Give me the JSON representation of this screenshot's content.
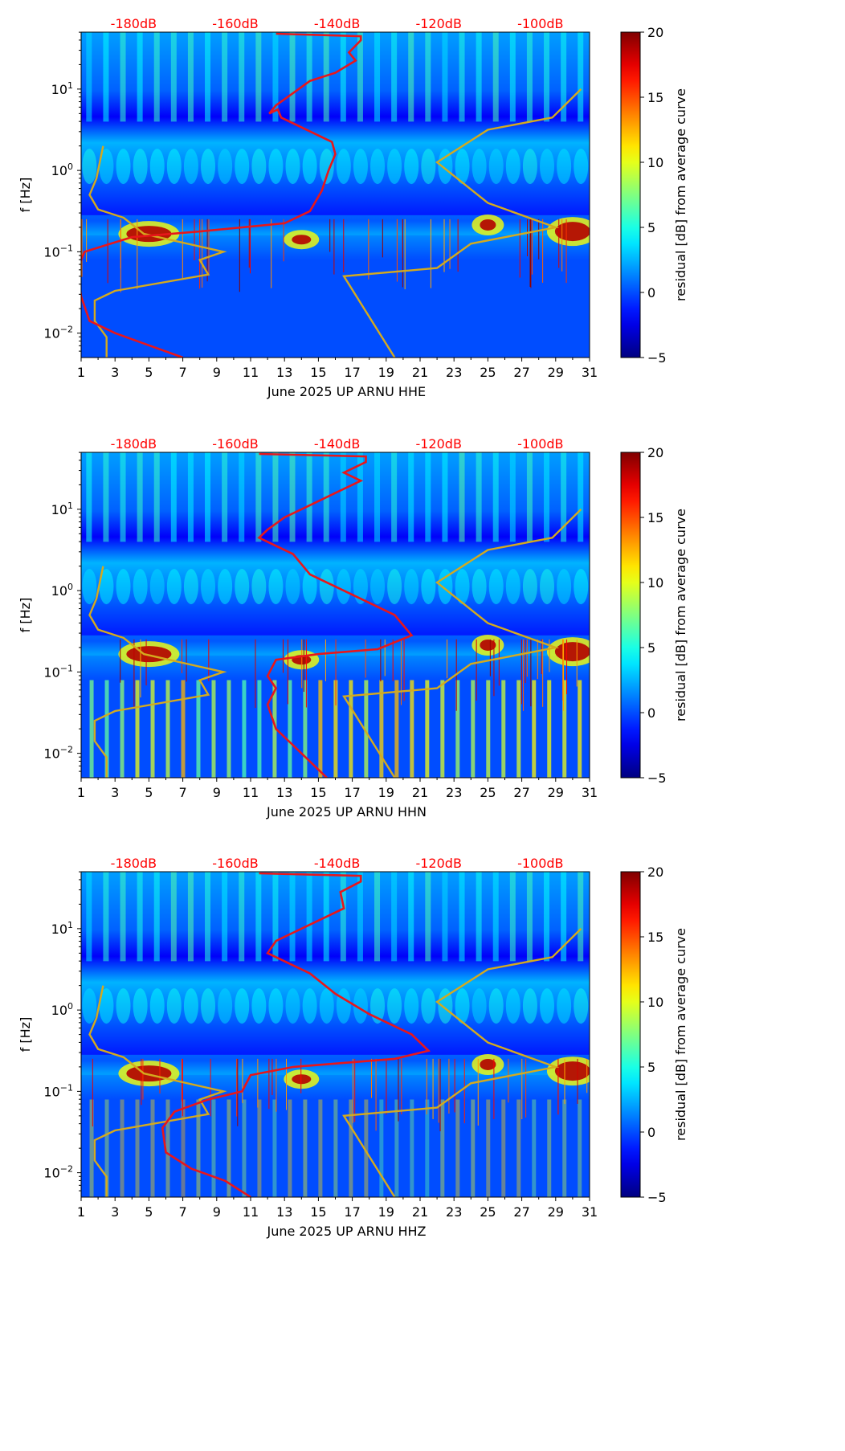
{
  "figure": {
    "colors": {
      "noise_model": "#d4aa1e",
      "psd_curve": "#e8161b",
      "top_labels": "#ff0000"
    }
  },
  "colorbar": {
    "label": "residual [dB] from average curve",
    "min": -5,
    "max": 20,
    "ticks": [
      "20",
      "15",
      "10",
      "5",
      "0",
      "−5"
    ],
    "tick_values": [
      20,
      15,
      10,
      5,
      0,
      -5
    ]
  },
  "chart_data": [
    {
      "type": "heatmap",
      "title": "",
      "xlabel": "June 2025 UP ARNU  HHE",
      "ylabel": "f [Hz]",
      "xlim": [
        1,
        31
      ],
      "ylim_log10": [
        -2.3,
        1.7
      ],
      "x_ticks": [
        "1",
        "3",
        "5",
        "7",
        "9",
        "11",
        "13",
        "15",
        "17",
        "19",
        "21",
        "23",
        "25",
        "27",
        "29",
        "31"
      ],
      "y_ticks": [
        {
          "label": "10",
          "exp": "1",
          "log10": 1
        },
        {
          "label": "10",
          "exp": "0",
          "log10": 0
        },
        {
          "label": "10",
          "exp": "−1",
          "log10": -1
        },
        {
          "label": "10",
          "exp": "−2",
          "log10": -2
        }
      ],
      "top_labels": [
        "-180dB",
        "-160dB",
        "-140dB",
        "-120dB",
        "-100dB"
      ],
      "top_label_days": [
        4.1,
        10.1,
        16.1,
        22.1,
        28.1
      ],
      "series": [
        {
          "name": "low noise model",
          "color": "#d4aa1e",
          "x": [
            2.5,
            2.5,
            1.8,
            1.8,
            3.0,
            8.5,
            8.0,
            9.4,
            4.7,
            3.5,
            2.0,
            1.5,
            1.9,
            2.3
          ],
          "log10f": [
            -2.3,
            -2.05,
            -1.85,
            -1.6,
            -1.48,
            -1.28,
            -1.1,
            -1.0,
            -0.78,
            -0.58,
            -0.48,
            -0.3,
            -0.1,
            0.3
          ]
        },
        {
          "name": "high noise model",
          "color": "#d4aa1e",
          "x": [
            19.5,
            16.5,
            22.0,
            24.0,
            29.0,
            25.0,
            22.0,
            25.0,
            28.8,
            30.5
          ],
          "log10f": [
            -2.3,
            -1.3,
            -1.2,
            -0.9,
            -0.7,
            -0.4,
            0.1,
            0.5,
            0.65,
            1.0
          ]
        },
        {
          "name": "PSD curve",
          "color": "#e8161b",
          "x": [
            7.0,
            5.0,
            3.0,
            1.5,
            1.0,
            0.8,
            1.2,
            4.0,
            8.0,
            13.0,
            14.5,
            15.2,
            15.6,
            16.0,
            15.8,
            14.8,
            13.8,
            12.8,
            12.6,
            12.1,
            12.5,
            13.5,
            14.5,
            16.0,
            17.2,
            16.8,
            17.5,
            17.5,
            12.5
          ],
          "log10f": [
            -2.3,
            -2.15,
            -2.0,
            -1.85,
            -1.55,
            -1.2,
            -1.0,
            -0.82,
            -0.75,
            -0.65,
            -0.5,
            -0.25,
            0.0,
            0.2,
            0.35,
            0.45,
            0.55,
            0.65,
            0.75,
            0.7,
            0.8,
            0.95,
            1.1,
            1.2,
            1.35,
            1.45,
            1.6,
            1.65,
            1.68
          ]
        }
      ]
    },
    {
      "type": "heatmap",
      "title": "",
      "xlabel": "June 2025 UP ARNU  HHN",
      "ylabel": "f [Hz]",
      "xlim": [
        1,
        31
      ],
      "ylim_log10": [
        -2.3,
        1.7
      ],
      "x_ticks": [
        "1",
        "3",
        "5",
        "7",
        "9",
        "11",
        "13",
        "15",
        "17",
        "19",
        "21",
        "23",
        "25",
        "27",
        "29",
        "31"
      ],
      "y_ticks": [
        {
          "label": "10",
          "exp": "1",
          "log10": 1
        },
        {
          "label": "10",
          "exp": "0",
          "log10": 0
        },
        {
          "label": "10",
          "exp": "−1",
          "log10": -1
        },
        {
          "label": "10",
          "exp": "−2",
          "log10": -2
        }
      ],
      "top_labels": [
        "-180dB",
        "-160dB",
        "-140dB",
        "-120dB",
        "-100dB"
      ],
      "top_label_days": [
        4.1,
        10.1,
        16.1,
        22.1,
        28.1
      ],
      "series": [
        {
          "name": "low noise model",
          "color": "#d4aa1e",
          "x": [
            2.5,
            2.5,
            1.8,
            1.8,
            3.0,
            8.5,
            8.0,
            9.4,
            4.7,
            3.5,
            2.0,
            1.5,
            1.9,
            2.3
          ],
          "log10f": [
            -2.3,
            -2.05,
            -1.85,
            -1.6,
            -1.48,
            -1.28,
            -1.1,
            -1.0,
            -0.78,
            -0.58,
            -0.48,
            -0.3,
            -0.1,
            0.3
          ]
        },
        {
          "name": "high noise model",
          "color": "#d4aa1e",
          "x": [
            19.5,
            16.5,
            22.0,
            24.0,
            29.0,
            25.0,
            22.0,
            25.0,
            28.8,
            30.5
          ],
          "log10f": [
            -2.3,
            -1.3,
            -1.2,
            -0.9,
            -0.7,
            -0.4,
            0.1,
            0.5,
            0.65,
            1.0
          ]
        },
        {
          "name": "PSD curve",
          "color": "#e8161b",
          "x": [
            15.5,
            14.5,
            13.5,
            12.5,
            12.0,
            12.5,
            12.0,
            12.5,
            15.0,
            18.5,
            20.5,
            19.5,
            17.0,
            14.5,
            13.5,
            12.5,
            11.5,
            12.0,
            13.0,
            14.5,
            16.0,
            17.5,
            16.5,
            17.8,
            17.8,
            11.5
          ],
          "log10f": [
            -2.3,
            -2.1,
            -1.9,
            -1.7,
            -1.4,
            -1.2,
            -1.05,
            -0.85,
            -0.78,
            -0.72,
            -0.55,
            -0.3,
            -0.05,
            0.2,
            0.45,
            0.55,
            0.65,
            0.75,
            0.9,
            1.05,
            1.2,
            1.35,
            1.45,
            1.58,
            1.65,
            1.68
          ]
        }
      ]
    },
    {
      "type": "heatmap",
      "title": "",
      "xlabel": "June 2025 UP ARNU  HHZ",
      "ylabel": "f [Hz]",
      "xlim": [
        1,
        31
      ],
      "ylim_log10": [
        -2.3,
        1.7
      ],
      "x_ticks": [
        "1",
        "3",
        "5",
        "7",
        "9",
        "11",
        "13",
        "15",
        "17",
        "19",
        "21",
        "23",
        "25",
        "27",
        "29",
        "31"
      ],
      "y_ticks": [
        {
          "label": "10",
          "exp": "1",
          "log10": 1
        },
        {
          "label": "10",
          "exp": "0",
          "log10": 0
        },
        {
          "label": "10",
          "exp": "−1",
          "log10": -1
        },
        {
          "label": "10",
          "exp": "−2",
          "log10": -2
        }
      ],
      "top_labels": [
        "-180dB",
        "-160dB",
        "-140dB",
        "-120dB",
        "-100dB"
      ],
      "top_label_days": [
        4.1,
        10.1,
        16.1,
        22.1,
        28.1
      ],
      "series": [
        {
          "name": "low noise model",
          "color": "#d4aa1e",
          "x": [
            2.5,
            2.5,
            1.8,
            1.8,
            3.0,
            8.5,
            8.0,
            9.4,
            4.7,
            3.5,
            2.0,
            1.5,
            1.9,
            2.3
          ],
          "log10f": [
            -2.3,
            -2.05,
            -1.85,
            -1.6,
            -1.48,
            -1.28,
            -1.1,
            -1.0,
            -0.78,
            -0.58,
            -0.48,
            -0.3,
            -0.1,
            0.3
          ]
        },
        {
          "name": "high noise model",
          "color": "#d4aa1e",
          "x": [
            19.5,
            16.5,
            22.0,
            24.0,
            29.0,
            25.0,
            22.0,
            25.0,
            28.8,
            30.5
          ],
          "log10f": [
            -2.3,
            -1.3,
            -1.2,
            -0.9,
            -0.7,
            -0.4,
            0.1,
            0.5,
            0.65,
            1.0
          ]
        },
        {
          "name": "PSD curve",
          "color": "#e8161b",
          "x": [
            11.0,
            9.5,
            7.5,
            6.0,
            5.8,
            6.5,
            8.5,
            10.5,
            11.0,
            13.5,
            16.5,
            19.5,
            21.5,
            20.5,
            18.0,
            16.0,
            14.5,
            13.0,
            12.0,
            12.5,
            14.5,
            16.5,
            16.3,
            17.5,
            17.5,
            11.5
          ],
          "log10f": [
            -2.3,
            -2.1,
            -1.95,
            -1.75,
            -1.45,
            -1.25,
            -1.1,
            -1.0,
            -0.8,
            -0.7,
            -0.65,
            -0.6,
            -0.5,
            -0.3,
            -0.05,
            0.2,
            0.45,
            0.6,
            0.7,
            0.85,
            1.05,
            1.25,
            1.45,
            1.58,
            1.65,
            1.68
          ]
        }
      ]
    }
  ]
}
